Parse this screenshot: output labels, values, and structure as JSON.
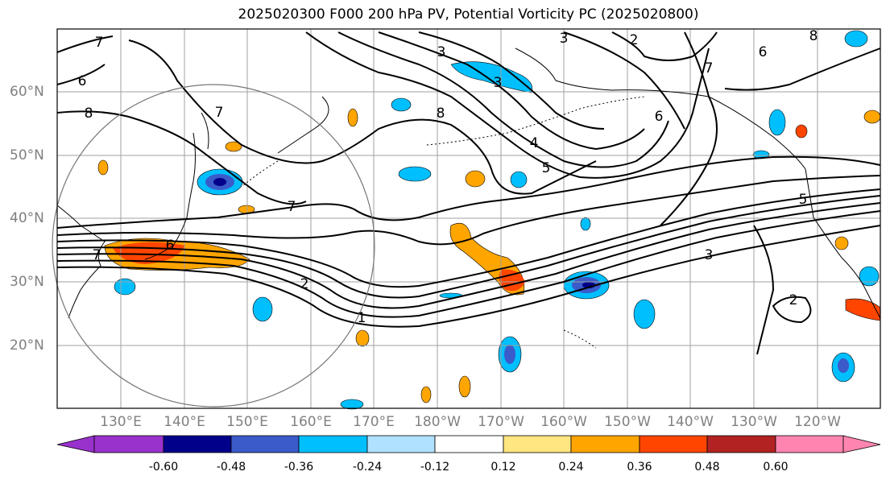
{
  "title": "2025020300 F000 200 hPa PV, Potential Vorticity PC (2025020800)",
  "lat_labels": [
    "60°N",
    "50°N",
    "40°N",
    "30°N",
    "20°N"
  ],
  "lon_labels": [
    "130°E",
    "140°E",
    "150°E",
    "160°E",
    "170°E",
    "180°W",
    "170°W",
    "160°W",
    "150°W",
    "140°W",
    "130°W",
    "120°W"
  ],
  "contour_labels": [
    "7",
    "6",
    "8",
    "7",
    "6",
    "7",
    "2",
    "3",
    "2",
    "8",
    "6",
    "7",
    "5",
    "3",
    "2",
    "1",
    "3",
    "3",
    "4",
    "5",
    "6",
    "7",
    "8"
  ],
  "colorbar": {
    "ticks": [
      "-0.60",
      "-0.48",
      "-0.36",
      "-0.24",
      "-0.12",
      "0.12",
      "0.24",
      "0.36",
      "0.48",
      "0.60"
    ],
    "colors": [
      "#9932CC",
      "#00008B",
      "#3A5BC9",
      "#00BFFF",
      "#B0E2FF",
      "#FFFFFF",
      "#FFE680",
      "#FFA500",
      "#FF4500",
      "#B22222",
      "#FF85B0"
    ]
  }
}
